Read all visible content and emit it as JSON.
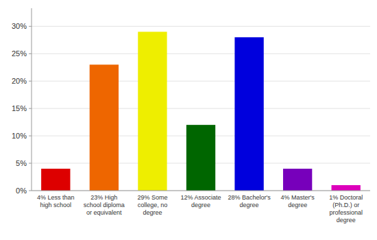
{
  "chart_data": {
    "type": "bar",
    "categories": [
      "4% Less than\nhigh school",
      "23% High\nschool diploma\nor equivalent",
      "29% Some\ncollege, no\ndegree",
      "12% Associate\ndegree",
      "28% Bachelor's\ndegree",
      "4% Master's\ndegree",
      "1% Doctoral\n(Ph.D.) or\nprofessional\ndegree"
    ],
    "values": [
      4,
      23,
      29,
      12,
      28,
      4,
      1
    ],
    "colors": [
      "#dd0000",
      "#ee6600",
      "#eeee00",
      "#006600",
      "#0000dd",
      "#7700bb",
      "#dd00bb"
    ],
    "ylim": [
      0,
      33.3
    ],
    "yticks": [
      {
        "value": 0,
        "label": "0%"
      },
      {
        "value": 5,
        "label": "5%"
      },
      {
        "value": 10,
        "label": "10%"
      },
      {
        "value": 15,
        "label": "15%"
      },
      {
        "value": 20,
        "label": "20%"
      },
      {
        "value": 25,
        "label": "25%"
      },
      {
        "value": 30,
        "label": "30%"
      }
    ],
    "grid": true
  }
}
